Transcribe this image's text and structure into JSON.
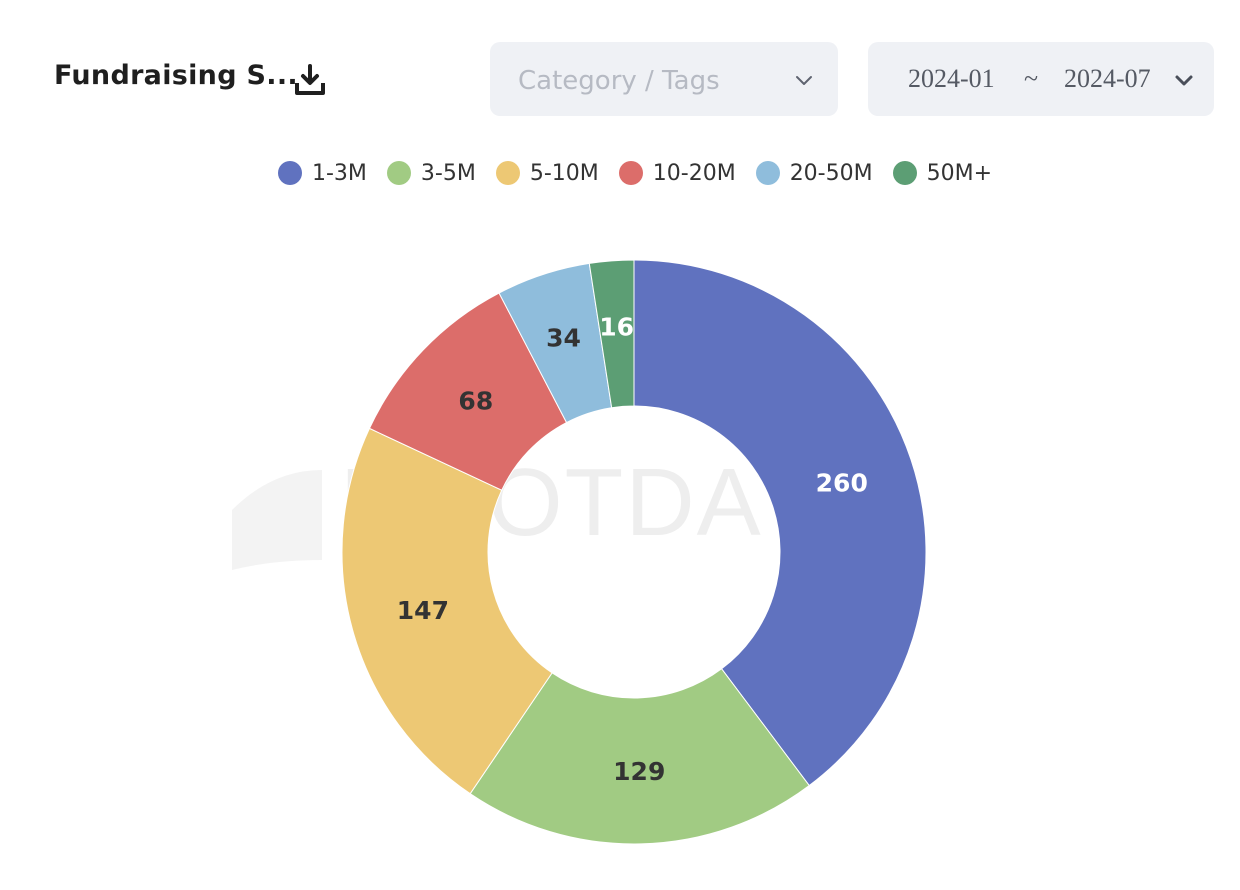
{
  "header": {
    "title": "Fundraising S...",
    "download_icon": "download-icon",
    "category_placeholder": "Category / Tags",
    "date_start": "2024-01",
    "date_separator": "~",
    "date_end": "2024-07",
    "chevron_icon": "chevron-down-icon"
  },
  "watermark": {
    "text": "ROOTDATA"
  },
  "chart_data": {
    "type": "pie",
    "donut": true,
    "title": "Fundraising S...",
    "legend_position": "top-center",
    "categories": [
      "1-3M",
      "3-5M",
      "5-10M",
      "10-20M",
      "20-50M",
      "50M+"
    ],
    "values": [
      260,
      129,
      147,
      68,
      34,
      16
    ],
    "colors": [
      "#6072bf",
      "#a1cb83",
      "#edc874",
      "#dc6d6a",
      "#8fbddc",
      "#5c9e74"
    ],
    "label_colors": [
      "#ffffff",
      "#333333",
      "#333333",
      "#333333",
      "#333333",
      "#ffffff"
    ]
  }
}
